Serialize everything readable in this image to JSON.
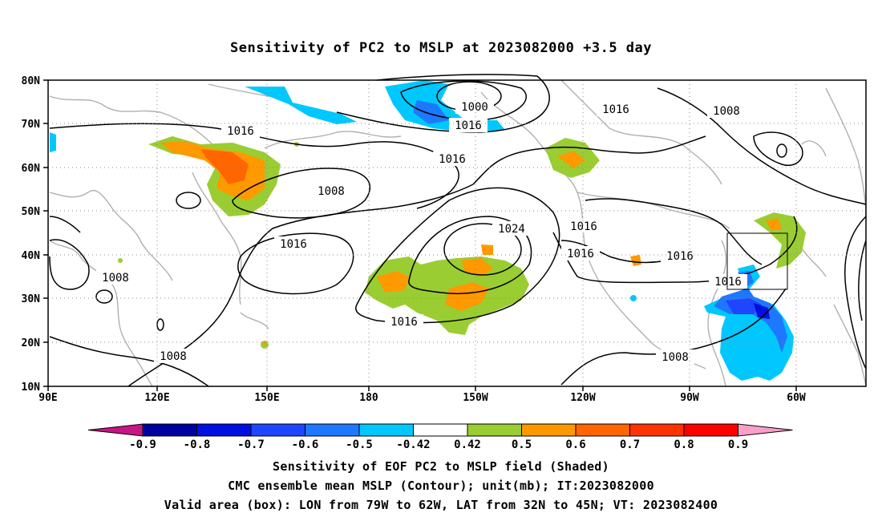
{
  "title": "Sensitivity of PC2 to MSLP at 2023082000 +3.5 day",
  "map": {
    "lat_labels": [
      "80N",
      "70N",
      "60N",
      "50N",
      "40N",
      "30N",
      "20N",
      "10N"
    ],
    "lon_labels": [
      "90E",
      "120E",
      "150E",
      "180",
      "150W",
      "120W",
      "90W",
      "60W"
    ],
    "contour_labels": [
      {
        "text": "1000"
      },
      {
        "text": "1016"
      },
      {
        "text": "1016"
      },
      {
        "text": "1008"
      },
      {
        "text": "1016"
      },
      {
        "text": "1016"
      },
      {
        "text": "1008"
      },
      {
        "text": "1016"
      },
      {
        "text": "1024"
      },
      {
        "text": "1016"
      },
      {
        "text": "1016"
      },
      {
        "text": "1016"
      },
      {
        "text": "1016"
      },
      {
        "text": "1008"
      },
      {
        "text": "1008"
      },
      {
        "text": "1016"
      },
      {
        "text": "1008"
      }
    ],
    "valid_box": {
      "lon_from": "79W",
      "lon_to": "62W",
      "lat_from": "32N",
      "lat_to": "45N"
    }
  },
  "colorbar": {
    "labels": [
      "-0.9",
      "-0.8",
      "-0.7",
      "-0.6",
      "-0.5",
      "-0.42",
      "0.42",
      "0.5",
      "0.6",
      "0.7",
      "0.8",
      "0.9"
    ],
    "colors": [
      "#0000a0",
      "#0010e0",
      "#1e46ff",
      "#1e78ff",
      "#00c8ff",
      "#ffffff",
      "#9acd32",
      "#ff9900",
      "#ff6600",
      "#ff3300",
      "#ff0000"
    ],
    "low_end_color": "#c71585",
    "high_end_color": "#f8a0c8"
  },
  "footer": {
    "line1": "Sensitivity of EOF PC2 to MSLP field (Shaded)",
    "line2": "CMC ensemble mean MSLP (Contour); unit(mb); IT:2023082000",
    "line3": "Valid area (box): LON from 79W to 62W, LAT from 32N to 45N; VT: 2023082400"
  }
}
